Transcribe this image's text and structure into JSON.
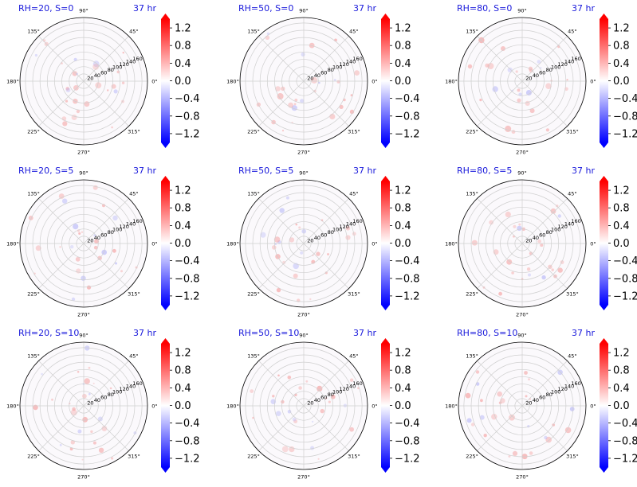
{
  "chart_data": [
    {
      "type": "heatmap",
      "subtype": "polar",
      "title": "RH=20, S=0",
      "time_label": "37 hr"
    },
    {
      "type": "heatmap",
      "subtype": "polar",
      "title": "RH=50, S=0",
      "time_label": "37 hr"
    },
    {
      "type": "heatmap",
      "subtype": "polar",
      "title": "RH=80, S=0",
      "time_label": "37 hr"
    },
    {
      "type": "heatmap",
      "subtype": "polar",
      "title": "RH=20, S=5",
      "time_label": "37 hr"
    },
    {
      "type": "heatmap",
      "subtype": "polar",
      "title": "RH=50, S=5",
      "time_label": "37 hr"
    },
    {
      "type": "heatmap",
      "subtype": "polar",
      "title": "RH=80, S=5",
      "time_label": "37 hr"
    },
    {
      "type": "heatmap",
      "subtype": "polar",
      "title": "RH=20, S=10",
      "time_label": "37 hr"
    },
    {
      "type": "heatmap",
      "subtype": "polar",
      "title": "RH=50, S=10",
      "time_label": "37 hr"
    },
    {
      "type": "heatmap",
      "subtype": "polar",
      "title": "RH=80, S=10",
      "time_label": "37 hr"
    }
  ],
  "shared_axes": {
    "angle_ticks": [
      "90°",
      "45°",
      "0°",
      "315°",
      "270°",
      "225°",
      "180°",
      "135°"
    ],
    "radial_ticks": [
      "20",
      "40",
      "60",
      "80",
      "100",
      "120",
      "140",
      "160"
    ],
    "radial_max": 175,
    "colorbar": {
      "ticks": [
        "1.2",
        "0.8",
        "0.4",
        "0.0",
        "−0.4",
        "−0.8",
        "−1.2"
      ],
      "range": [
        -1.4,
        1.4
      ],
      "colormap": "bwr",
      "extend": "both",
      "colors": {
        "max": "#ff0000",
        "mid": "#ffffff",
        "min": "#0000ff"
      }
    }
  }
}
